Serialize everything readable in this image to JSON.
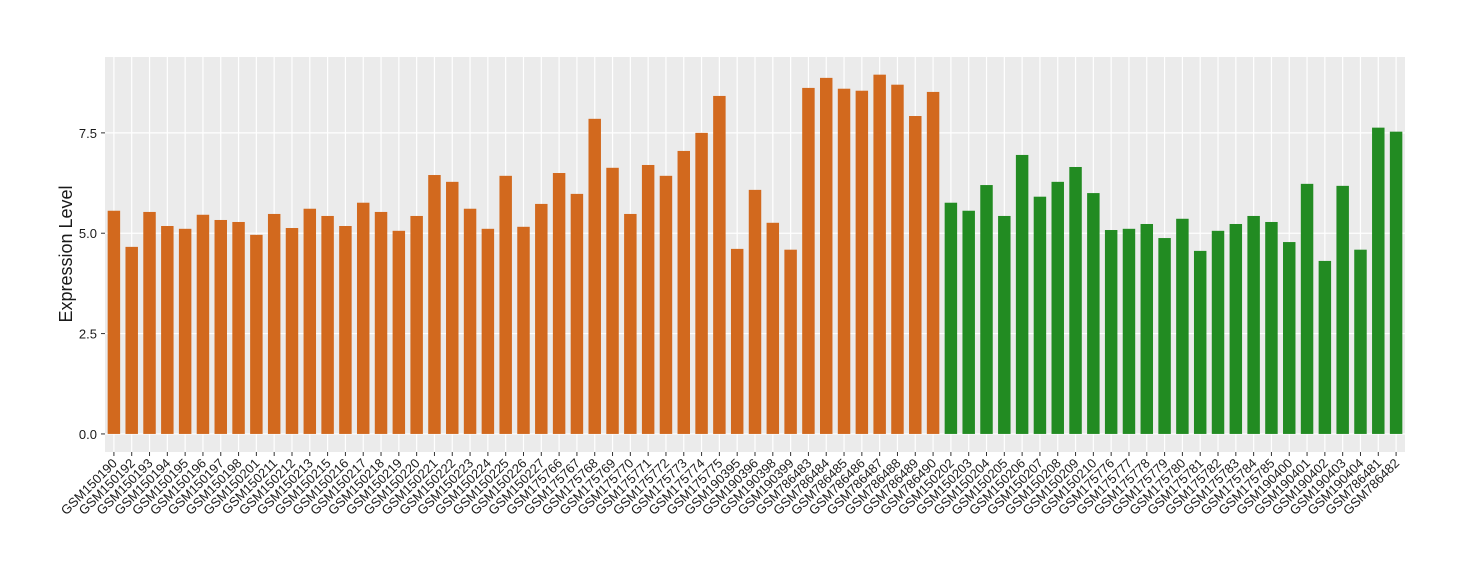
{
  "chart_data": {
    "type": "bar",
    "y_label": "Expression Level",
    "categories": [
      "GSM150190",
      "GSM150192",
      "GSM150193",
      "GSM150194",
      "GSM150195",
      "GSM150196",
      "GSM150197",
      "GSM150198",
      "GSM150201",
      "GSM150211",
      "GSM150212",
      "GSM150213",
      "GSM150215",
      "GSM150216",
      "GSM150217",
      "GSM150218",
      "GSM150219",
      "GSM150220",
      "GSM150221",
      "GSM150222",
      "GSM150223",
      "GSM150224",
      "GSM150225",
      "GSM150226",
      "GSM150227",
      "GSM175766",
      "GSM175767",
      "GSM175768",
      "GSM175769",
      "GSM175770",
      "GSM175771",
      "GSM175772",
      "GSM175773",
      "GSM175774",
      "GSM175775",
      "GSM190395",
      "GSM190396",
      "GSM190398",
      "GSM190399",
      "GSM786483",
      "GSM786484",
      "GSM786485",
      "GSM786486",
      "GSM786487",
      "GSM786488",
      "GSM786489",
      "GSM786490",
      "GSM150202",
      "GSM150203",
      "GSM150204",
      "GSM150205",
      "GSM150206",
      "GSM150207",
      "GSM150208",
      "GSM150209",
      "GSM150210",
      "GSM175776",
      "GSM175777",
      "GSM175778",
      "GSM175779",
      "GSM175780",
      "GSM175781",
      "GSM175782",
      "GSM175783",
      "GSM175784",
      "GSM175785",
      "GSM190400",
      "GSM190401",
      "GSM190402",
      "GSM190403",
      "GSM190404",
      "GSM786481",
      "GSM786482"
    ],
    "values": [
      5.56,
      4.66,
      5.53,
      5.18,
      5.11,
      5.46,
      5.33,
      5.28,
      4.96,
      5.48,
      5.13,
      5.61,
      5.43,
      5.18,
      5.76,
      5.53,
      5.06,
      5.43,
      6.45,
      6.28,
      5.61,
      5.11,
      6.43,
      5.16,
      5.73,
      6.5,
      5.98,
      7.85,
      6.63,
      5.48,
      6.7,
      6.43,
      7.05,
      7.5,
      8.42,
      4.61,
      6.08,
      5.26,
      4.59,
      8.62,
      8.87,
      8.6,
      8.55,
      8.95,
      8.7,
      7.92,
      8.52,
      5.76,
      5.56,
      6.2,
      5.43,
      6.95,
      5.91,
      6.28,
      6.65,
      6.0,
      5.08,
      5.11,
      5.23,
      4.88,
      5.36,
      4.56,
      5.06,
      5.23,
      5.43,
      5.28,
      4.78,
      6.23,
      4.31,
      6.18,
      4.59,
      7.63,
      7.53
    ],
    "colors": [
      "#d2691e",
      "#d2691e",
      "#d2691e",
      "#d2691e",
      "#d2691e",
      "#d2691e",
      "#d2691e",
      "#d2691e",
      "#d2691e",
      "#d2691e",
      "#d2691e",
      "#d2691e",
      "#d2691e",
      "#d2691e",
      "#d2691e",
      "#d2691e",
      "#d2691e",
      "#d2691e",
      "#d2691e",
      "#d2691e",
      "#d2691e",
      "#d2691e",
      "#d2691e",
      "#d2691e",
      "#d2691e",
      "#d2691e",
      "#d2691e",
      "#d2691e",
      "#d2691e",
      "#d2691e",
      "#d2691e",
      "#d2691e",
      "#d2691e",
      "#d2691e",
      "#d2691e",
      "#d2691e",
      "#d2691e",
      "#d2691e",
      "#d2691e",
      "#d2691e",
      "#d2691e",
      "#d2691e",
      "#d2691e",
      "#d2691e",
      "#d2691e",
      "#d2691e",
      "#d2691e",
      "#228b22",
      "#228b22",
      "#228b22",
      "#228b22",
      "#228b22",
      "#228b22",
      "#228b22",
      "#228b22",
      "#228b22",
      "#228b22",
      "#228b22",
      "#228b22",
      "#228b22",
      "#228b22",
      "#228b22",
      "#228b22",
      "#228b22",
      "#228b22",
      "#228b22",
      "#228b22",
      "#228b22",
      "#228b22",
      "#228b22",
      "#228b22",
      "#228b22",
      "#228b22"
    ],
    "ylim": [
      -0.45,
      9.39
    ],
    "yticks": [
      {
        "value": 0,
        "label": "0.0"
      },
      2.5,
      {
        "value": 5,
        "label": "5.0"
      },
      7.5
    ],
    "grid": true
  }
}
